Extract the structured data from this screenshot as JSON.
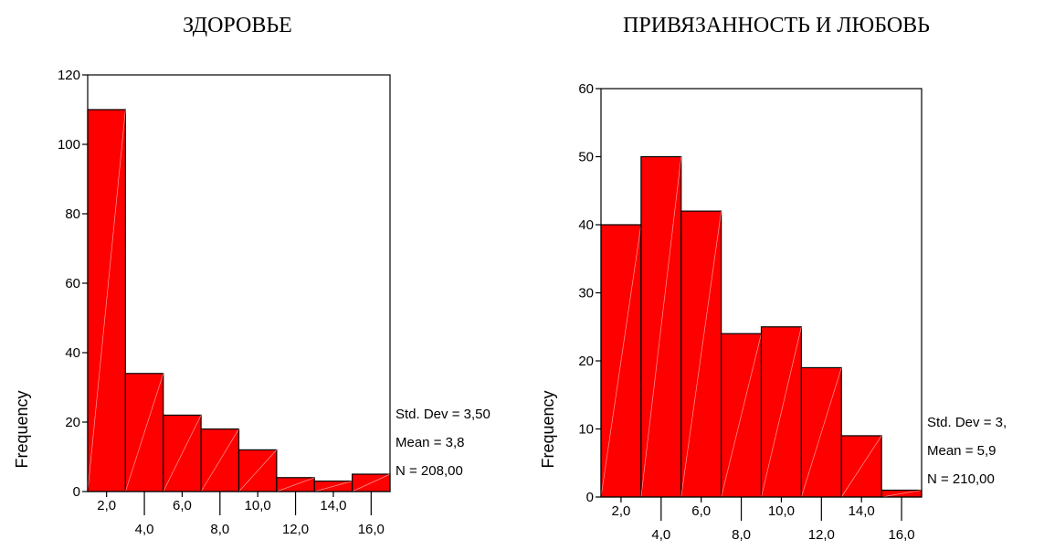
{
  "chart_data": [
    {
      "type": "bar",
      "title": "ЗДОРОВЬЕ",
      "ylabel": "Frequency",
      "ylim": [
        0,
        120
      ],
      "yticks": [
        "0",
        "20",
        "40",
        "60",
        "80",
        "100",
        "120"
      ],
      "xticks_upper": [
        "2,0",
        "6,0",
        "10,0",
        "14,0"
      ],
      "xticks_lower": [
        "4,0",
        "8,0",
        "12,0",
        "16,0"
      ],
      "bin_centers": [
        2,
        4,
        6,
        8,
        10,
        12,
        14,
        16
      ],
      "values": [
        110,
        34,
        22,
        18,
        12,
        4,
        3,
        5
      ],
      "stats": [
        "Std. Dev = 3,50",
        "Mean = 3,8",
        "N = 208,00"
      ],
      "bar_color": "#ff0000"
    },
    {
      "type": "bar",
      "title": "ПРИВЯЗАННОСТЬ И ЛЮБОВЬ",
      "ylabel": "Frequency",
      "ylim": [
        0,
        60
      ],
      "yticks": [
        "0",
        "10",
        "20",
        "30",
        "40",
        "50",
        "60"
      ],
      "xticks_upper": [
        "2,0",
        "6,0",
        "10,0",
        "14,0"
      ],
      "xticks_lower": [
        "4,0",
        "8,0",
        "12,0",
        "16,0"
      ],
      "bin_centers": [
        2,
        4,
        6,
        8,
        10,
        12,
        14,
        16
      ],
      "values": [
        40,
        50,
        42,
        24,
        25,
        19,
        9,
        1
      ],
      "stats": [
        "Std. Dev = 3,",
        "Mean = 5,9",
        "N = 210,00"
      ],
      "bar_color": "#ff0000"
    }
  ]
}
